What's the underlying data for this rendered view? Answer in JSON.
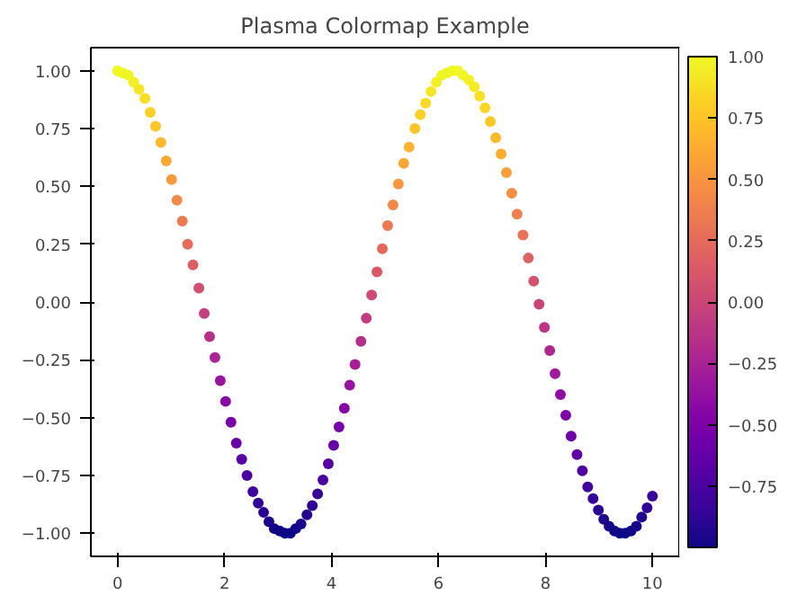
{
  "chart_data": {
    "type": "scatter",
    "title": "Plasma Colormap Example",
    "x": [
      0.0,
      0.1,
      0.2,
      0.3,
      0.4,
      0.51,
      0.61,
      0.71,
      0.81,
      0.91,
      1.01,
      1.11,
      1.21,
      1.31,
      1.41,
      1.52,
      1.62,
      1.72,
      1.82,
      1.92,
      2.02,
      2.12,
      2.22,
      2.32,
      2.42,
      2.53,
      2.63,
      2.73,
      2.83,
      2.93,
      3.03,
      3.13,
      3.23,
      3.33,
      3.43,
      3.54,
      3.64,
      3.74,
      3.84,
      3.94,
      4.04,
      4.14,
      4.24,
      4.34,
      4.44,
      4.55,
      4.65,
      4.75,
      4.85,
      4.95,
      5.05,
      5.15,
      5.25,
      5.35,
      5.45,
      5.56,
      5.66,
      5.76,
      5.86,
      5.96,
      6.06,
      6.16,
      6.26,
      6.36,
      6.46,
      6.57,
      6.67,
      6.77,
      6.87,
      6.97,
      7.07,
      7.17,
      7.27,
      7.37,
      7.47,
      7.58,
      7.68,
      7.78,
      7.88,
      7.98,
      8.08,
      8.18,
      8.28,
      8.38,
      8.48,
      8.59,
      8.69,
      8.79,
      8.89,
      8.99,
      9.09,
      9.19,
      9.29,
      9.39,
      9.49,
      9.6,
      9.7,
      9.8,
      9.9,
      10.0
    ],
    "values": [
      1.0,
      0.99,
      0.98,
      0.95,
      0.92,
      0.88,
      0.82,
      0.76,
      0.69,
      0.61,
      0.53,
      0.44,
      0.35,
      0.25,
      0.16,
      0.06,
      -0.05,
      -0.15,
      -0.24,
      -0.34,
      -0.43,
      -0.52,
      -0.61,
      -0.68,
      -0.75,
      -0.82,
      -0.87,
      -0.91,
      -0.95,
      -0.98,
      -0.99,
      -1.0,
      -1.0,
      -0.98,
      -0.96,
      -0.92,
      -0.88,
      -0.83,
      -0.77,
      -0.7,
      -0.62,
      -0.54,
      -0.46,
      -0.36,
      -0.27,
      -0.17,
      -0.07,
      0.03,
      0.13,
      0.23,
      0.33,
      0.42,
      0.51,
      0.6,
      0.67,
      0.75,
      0.81,
      0.86,
      0.91,
      0.95,
      0.98,
      0.99,
      1.0,
      1.0,
      0.98,
      0.96,
      0.93,
      0.89,
      0.84,
      0.78,
      0.71,
      0.64,
      0.56,
      0.47,
      0.38,
      0.29,
      0.19,
      0.09,
      -0.01,
      -0.11,
      -0.21,
      -0.31,
      -0.4,
      -0.49,
      -0.58,
      -0.66,
      -0.73,
      -0.8,
      -0.85,
      -0.9,
      -0.94,
      -0.97,
      -0.99,
      -1.0,
      -1.0,
      -0.99,
      -0.97,
      -0.93,
      -0.89,
      -0.84
    ],
    "cvalues": [
      1.0,
      0.99,
      0.98,
      0.95,
      0.92,
      0.88,
      0.82,
      0.76,
      0.69,
      0.61,
      0.53,
      0.44,
      0.35,
      0.25,
      0.16,
      0.06,
      -0.05,
      -0.15,
      -0.24,
      -0.34,
      -0.43,
      -0.52,
      -0.61,
      -0.68,
      -0.75,
      -0.82,
      -0.87,
      -0.91,
      -0.95,
      -0.98,
      -0.99,
      -1.0,
      -1.0,
      -0.98,
      -0.96,
      -0.92,
      -0.88,
      -0.83,
      -0.77,
      -0.7,
      -0.62,
      -0.54,
      -0.46,
      -0.36,
      -0.27,
      -0.17,
      -0.07,
      0.03,
      0.13,
      0.23,
      0.33,
      0.42,
      0.51,
      0.6,
      0.67,
      0.75,
      0.81,
      0.86,
      0.91,
      0.95,
      0.98,
      0.99,
      1.0,
      1.0,
      0.98,
      0.96,
      0.93,
      0.89,
      0.84,
      0.78,
      0.71,
      0.64,
      0.56,
      0.47,
      0.38,
      0.29,
      0.19,
      0.09,
      -0.01,
      -0.11,
      -0.21,
      -0.31,
      -0.4,
      -0.49,
      -0.58,
      -0.66,
      -0.73,
      -0.8,
      -0.85,
      -0.9,
      -0.94,
      -0.97,
      -0.99,
      -1.0,
      -1.0,
      -0.99,
      -0.97,
      -0.93,
      -0.89,
      -0.84
    ],
    "xlim": [
      -0.5,
      10.5
    ],
    "xticks": [
      0,
      2,
      4,
      6,
      8,
      10
    ],
    "ylim": [
      -1.1,
      1.1
    ],
    "yticks": [
      {
        "value": -1,
        "label": "−1.00"
      },
      {
        "value": -0.75,
        "label": "−0.75"
      },
      {
        "value": -0.5,
        "label": "−0.50"
      },
      {
        "value": -0.25,
        "label": "−0.25"
      },
      {
        "value": 0,
        "label": "0.00"
      },
      {
        "value": 0.25,
        "label": "0.25"
      },
      {
        "value": 0.5,
        "label": "0.50"
      },
      {
        "value": 0.75,
        "label": "0.75"
      },
      {
        "value": 1,
        "label": "1.00"
      }
    ],
    "clim": [
      -1.0,
      1.0
    ],
    "cticks": [
      {
        "value": -0.75,
        "label": "−0.75"
      },
      {
        "value": -0.5,
        "label": "−0.50"
      },
      {
        "value": -0.25,
        "label": "−0.25"
      },
      {
        "value": 0,
        "label": "0.00"
      },
      {
        "value": 0.25,
        "label": "0.25"
      },
      {
        "value": 0.5,
        "label": "0.50"
      },
      {
        "value": 0.75,
        "label": "0.75"
      },
      {
        "value": 1,
        "label": "1.00"
      }
    ],
    "marker": "circle",
    "grid": false
  }
}
